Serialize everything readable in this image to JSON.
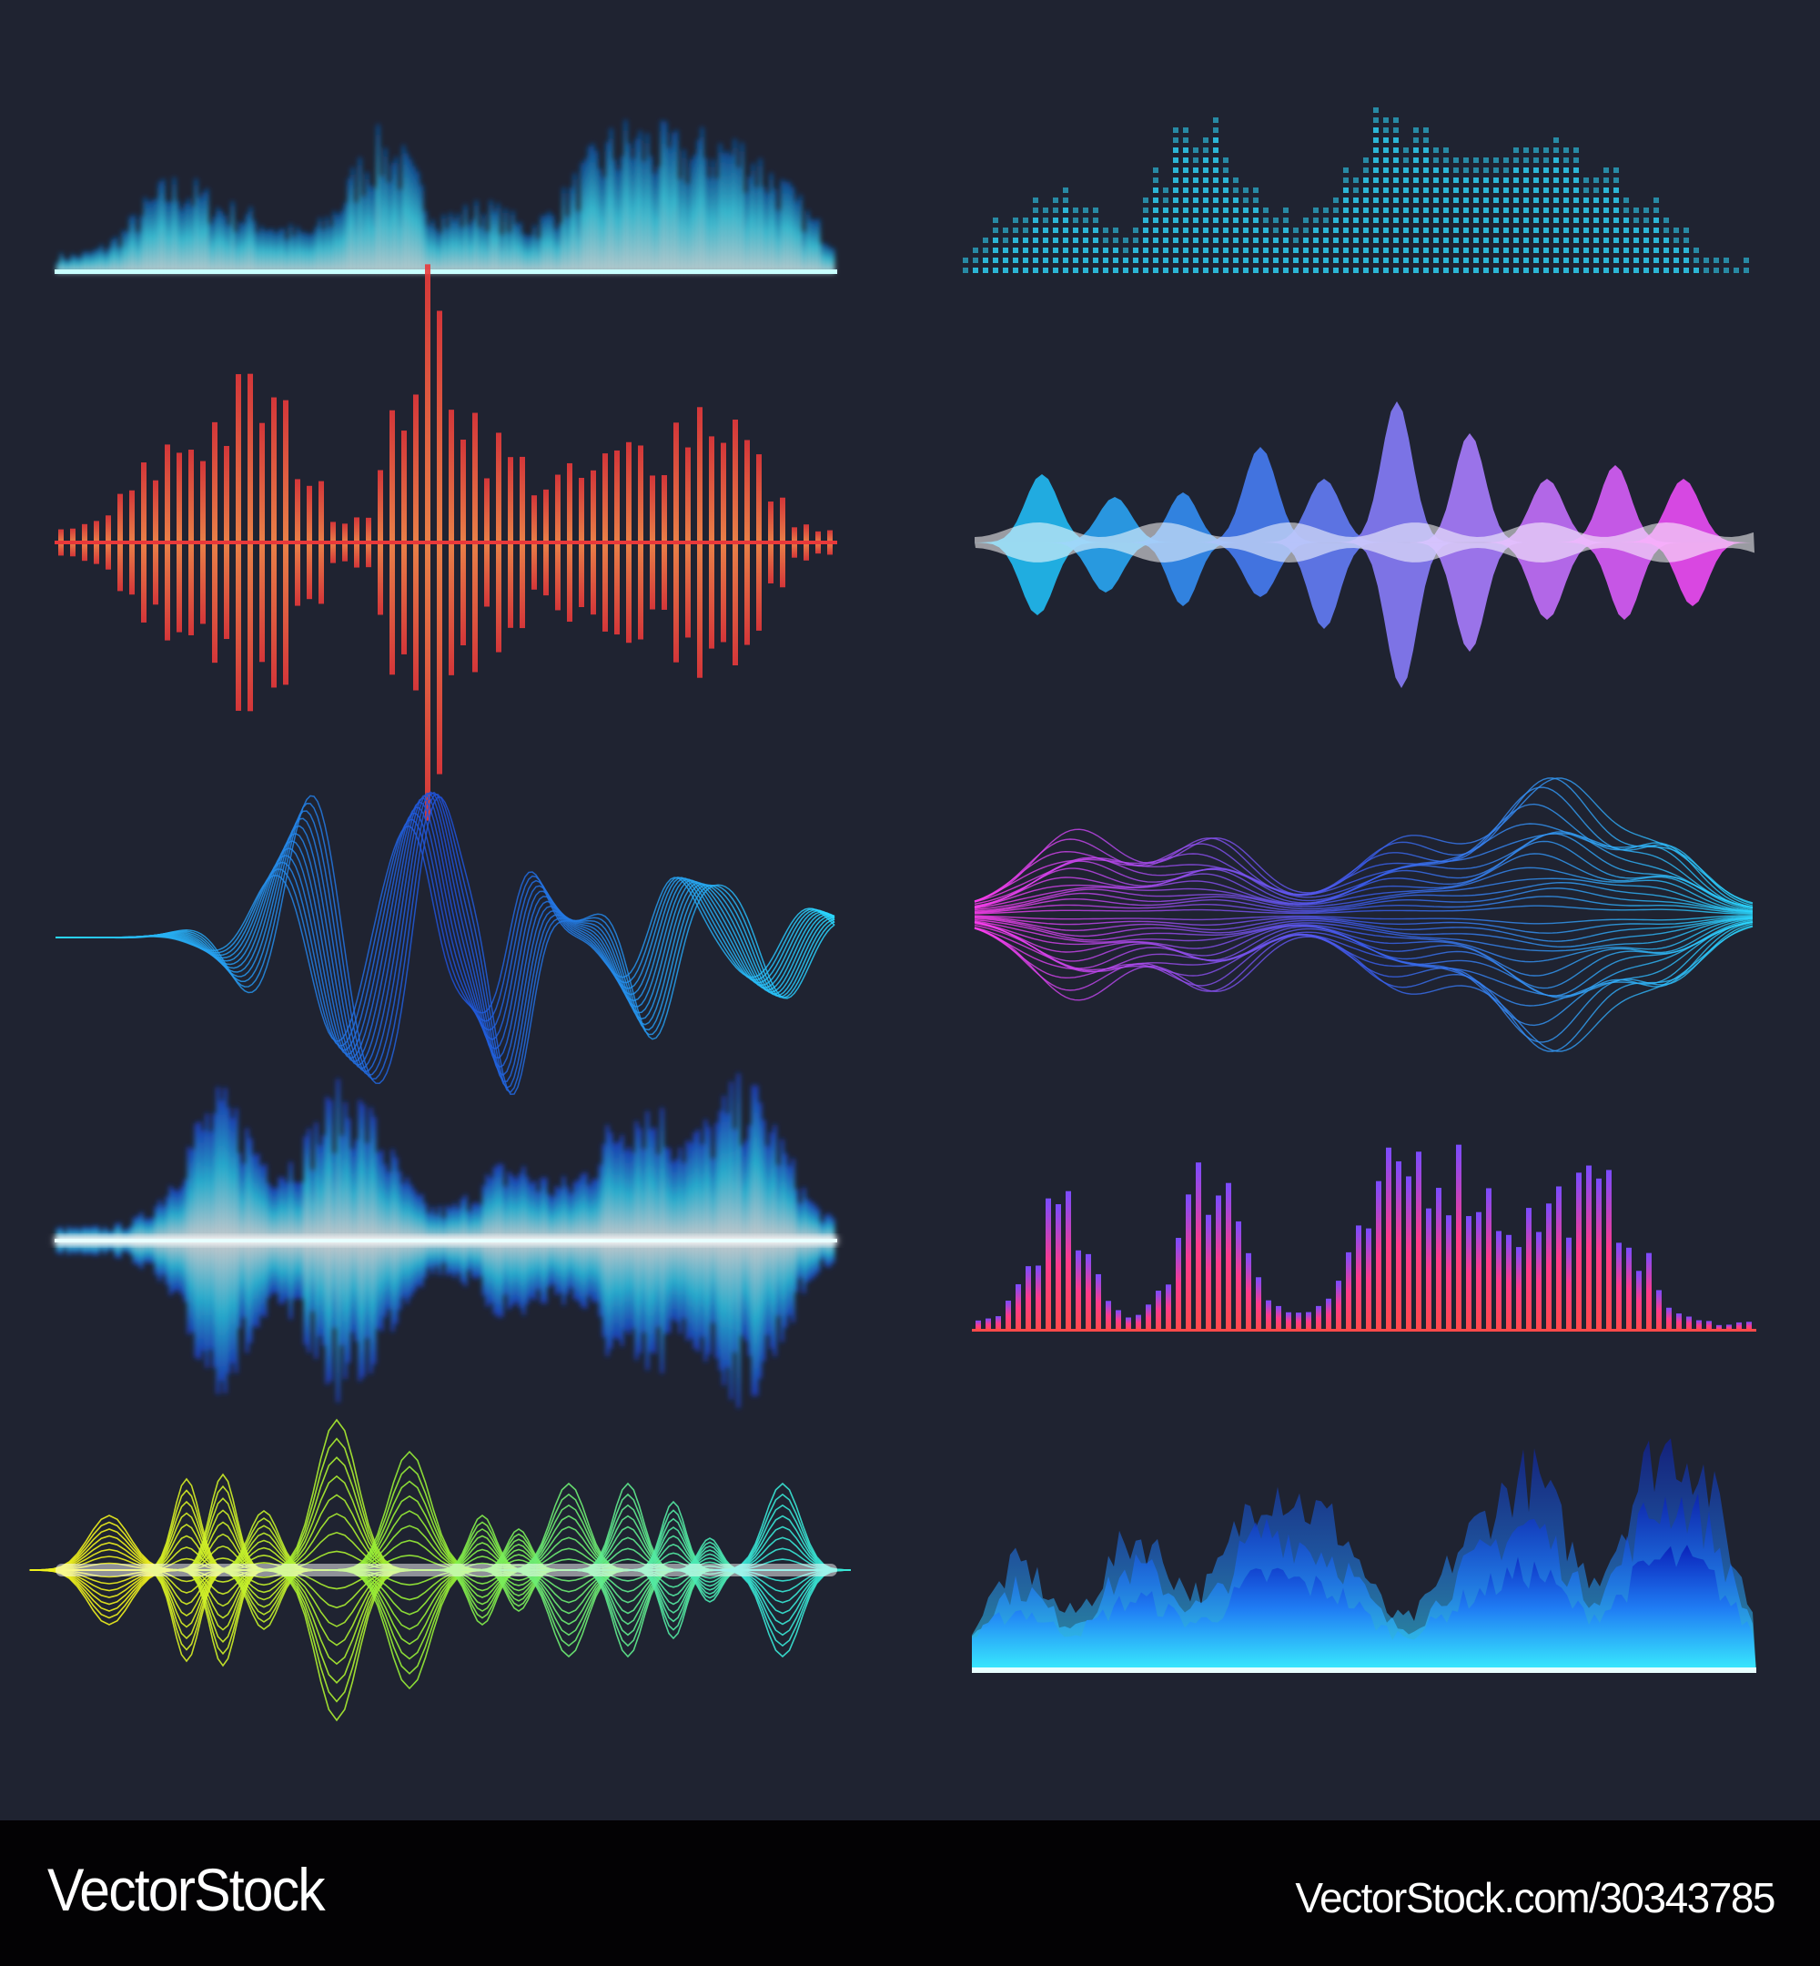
{
  "illustration": {
    "background_color": "#1f2331",
    "panels": [
      {
        "id": "blurred-spectrum",
        "colors": [
          "#0a4fa8",
          "#3ee6ff",
          "#e8ffff"
        ]
      },
      {
        "id": "dotted-equalizer",
        "colors": [
          "#2bb6d6"
        ]
      },
      {
        "id": "red-bars",
        "colors": [
          "#e8383a",
          "#ff8a4a"
        ]
      },
      {
        "id": "blob-wave",
        "colors": [
          "#18d0f5",
          "#3a7cf2",
          "#b27cff",
          "#ff3cf2"
        ]
      },
      {
        "id": "line-wave",
        "colors": [
          "#1f4fd8",
          "#2ad8ff"
        ]
      },
      {
        "id": "lens-wave",
        "colors": [
          "#ff3cf0",
          "#3a5cf0",
          "#2ad8ff"
        ]
      },
      {
        "id": "glow-wave",
        "colors": [
          "#1a3fd6",
          "#2ad8ff",
          "#ffffff"
        ]
      },
      {
        "id": "purple-red-bars",
        "colors": [
          "#7a4cff",
          "#ff3a8a",
          "#ff4a4a"
        ]
      },
      {
        "id": "yellow-cyan-lens",
        "colors": [
          "#fff21a",
          "#8cf03a",
          "#2ae6f0"
        ]
      },
      {
        "id": "blue-mountains",
        "colors": [
          "#0a1fb8",
          "#1f7cf5",
          "#3af0ff"
        ]
      }
    ]
  },
  "footer": {
    "background_color": "#030204",
    "brand": "VectorStock",
    "url": "VectorStock.com/30343785"
  }
}
